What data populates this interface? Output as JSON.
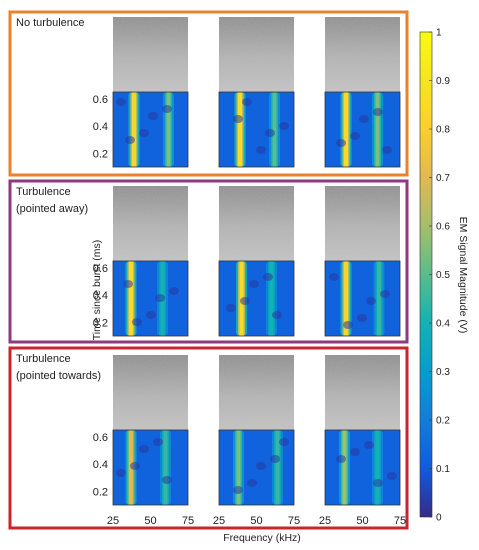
{
  "chart_data": {
    "type": "heatmap",
    "xlabel": "Frequency (kHz)",
    "ylabel": "Time since burst (ms)",
    "x_ticks": [
      "25",
      "50",
      "75"
    ],
    "y_ticks": [
      "0.6",
      "0.4",
      "0.2"
    ],
    "xlim": [
      25,
      75
    ],
    "ylim": [
      0.1,
      0.65
    ],
    "colorbar": {
      "label": "EM Signal Magnitude (V)",
      "range": [
        0,
        1
      ],
      "ticks": [
        "1",
        "0.9",
        "0.8",
        "0.7",
        "0.6",
        "0.5",
        "0.4",
        "0.3",
        "0.2",
        "0.1",
        "0"
      ]
    },
    "conditions": [
      {
        "title_lines": [
          "No turbulence"
        ],
        "frame_color": "#e8822e",
        "runs": [
          {
            "bands": [
              {
                "f": 39,
                "v": 0.82
              },
              {
                "f": 62,
                "v": 0.55
              }
            ],
            "background": 0.12
          },
          {
            "bands": [
              {
                "f": 39,
                "v": 0.85
              },
              {
                "f": 62,
                "v": 0.5
              }
            ],
            "background": 0.12
          },
          {
            "bands": [
              {
                "f": 39,
                "v": 0.85
              },
              {
                "f": 60,
                "v": 0.55
              }
            ],
            "background": 0.12
          }
        ]
      },
      {
        "title_lines": [
          "Turbulence",
          "(pointed away)"
        ],
        "frame_color": "#8e3a7e",
        "runs": [
          {
            "bands": [
              {
                "f": 37,
                "v": 0.85
              },
              {
                "f": 58,
                "v": 0.4
              }
            ],
            "background": 0.12
          },
          {
            "bands": [
              {
                "f": 40,
                "v": 0.85
              },
              {
                "f": 60,
                "v": 0.4
              }
            ],
            "background": 0.12
          },
          {
            "bands": [
              {
                "f": 39,
                "v": 0.82
              },
              {
                "f": 61,
                "v": 0.45
              }
            ],
            "background": 0.12
          }
        ]
      },
      {
        "title_lines": [
          "Turbulence",
          "(pointed towards)"
        ],
        "frame_color": "#c9252c",
        "runs": [
          {
            "bands": [
              {
                "f": 37,
                "v": 0.7
              },
              {
                "f": 60,
                "v": 0.45
              }
            ],
            "background": 0.12
          },
          {
            "bands": [
              {
                "f": 38,
                "v": 0.55
              },
              {
                "f": 64,
                "v": 0.45
              }
            ],
            "background": 0.12
          },
          {
            "bands": [
              {
                "f": 38,
                "v": 0.6
              },
              {
                "f": 60,
                "v": 0.4
              }
            ],
            "background": 0.12
          }
        ]
      }
    ]
  }
}
